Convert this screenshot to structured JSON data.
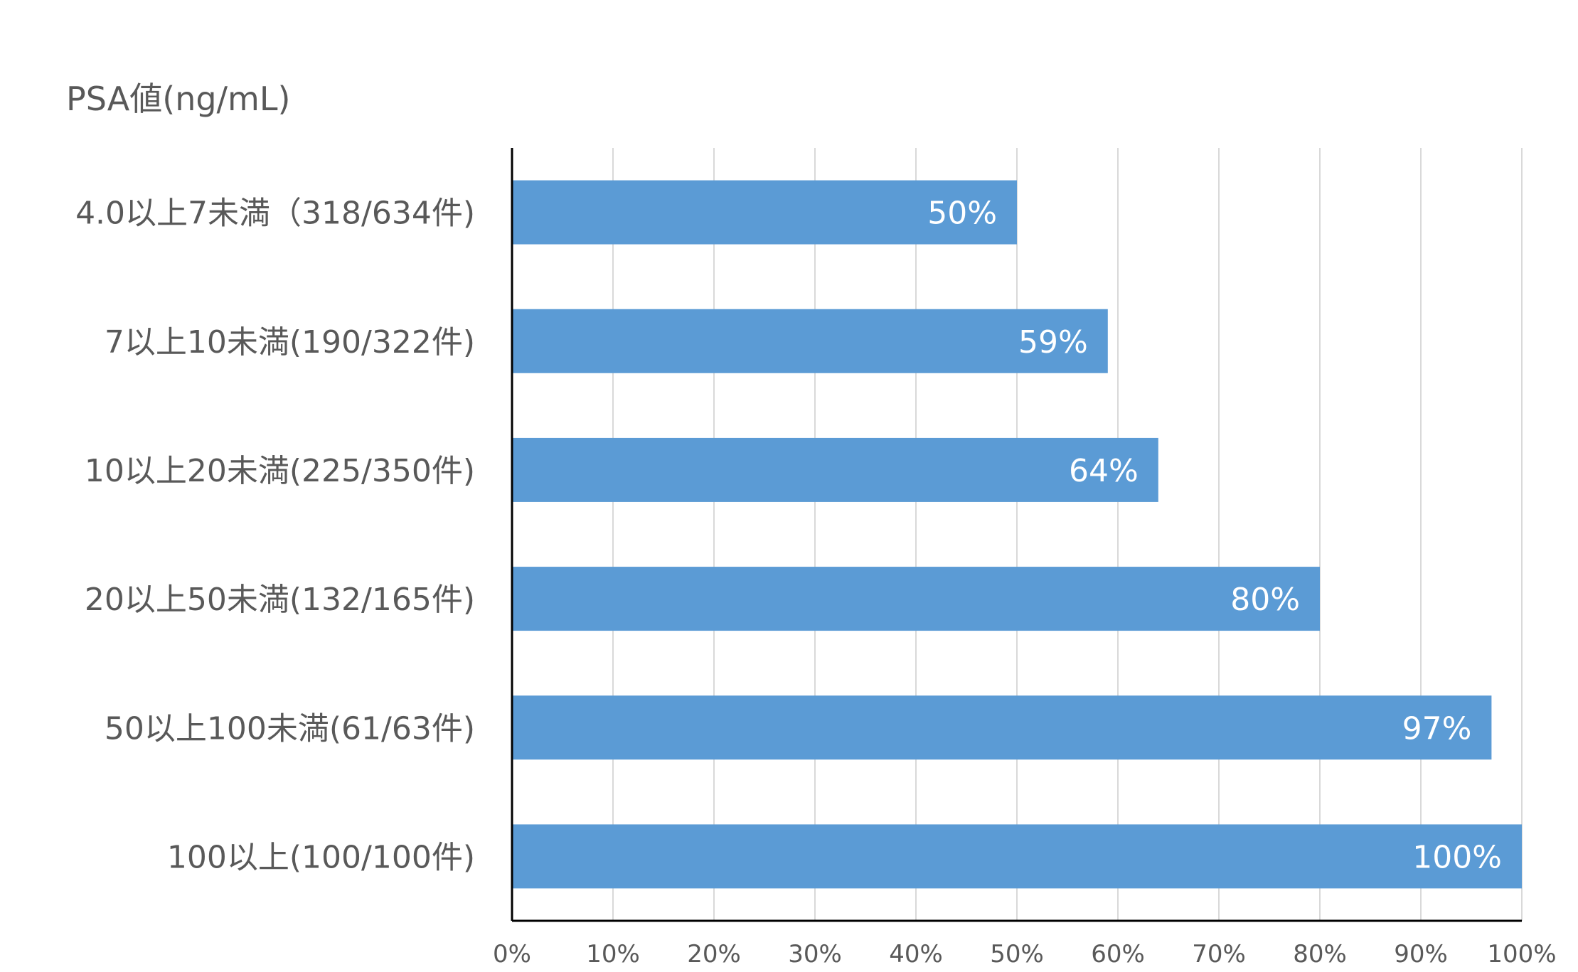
{
  "chart_data": {
    "type": "bar",
    "orientation": "horizontal",
    "title": "",
    "ylabel": "PSA値(ng/mL)",
    "xlabel": "",
    "categories": [
      "4.0以上7未満（318/634件)",
      "7以上10未満(190/322件)",
      "10以上20未満(225/350件)",
      "20以上50未満(132/165件)",
      "50以上100未満(61/63件)",
      "100以上(100/100件)"
    ],
    "values": [
      50,
      59,
      64,
      80,
      97,
      100
    ],
    "data_labels": [
      "50%",
      "59%",
      "64%",
      "80%",
      "97%",
      "100%"
    ],
    "xlim": [
      0,
      100
    ],
    "x_ticks": [
      "0%",
      "10%",
      "20%",
      "30%",
      "40%",
      "50%",
      "60%",
      "70%",
      "80%",
      "90%",
      "100%"
    ],
    "grid": true,
    "legend": "none",
    "colors": {
      "bar": "#5b9bd5",
      "grid": "#d9d9d9",
      "axis": "#000000",
      "category_text": "#595959",
      "tick_text": "#595959",
      "data_label_text": "#ffffff"
    }
  }
}
